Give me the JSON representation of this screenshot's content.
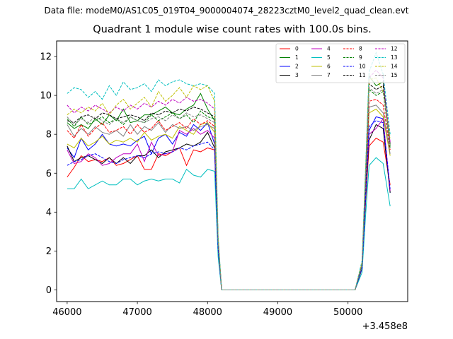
{
  "header": {
    "data_file": "Data file: modeM0/AS1C05_019T04_9000004074_28223cztM0_level2_quad_clean.evt"
  },
  "chart_data": {
    "type": "line",
    "title": "Quadrant 1 module wise count rates with 100.0s bins.",
    "xlabel": "",
    "ylabel": "",
    "x_offset_label": "+3.458e8",
    "xlim": [
      45850,
      50850
    ],
    "ylim": [
      -0.6,
      12.8
    ],
    "x_ticks": [
      46000,
      47000,
      48000,
      49000,
      50000
    ],
    "y_ticks": [
      0,
      2,
      4,
      6,
      8,
      10,
      12
    ],
    "grid": false,
    "legend_placement": "top-right",
    "x": [
      46000,
      46100,
      46200,
      46300,
      46400,
      46500,
      46600,
      46700,
      46800,
      46900,
      47000,
      47100,
      47200,
      47300,
      47400,
      47500,
      47600,
      47700,
      47800,
      47900,
      48000,
      48100,
      48150,
      48200,
      48300,
      48400,
      48500,
      48600,
      48700,
      48800,
      48900,
      49000,
      49100,
      49200,
      49300,
      49400,
      49500,
      49600,
      49700,
      49800,
      49900,
      50000,
      50100,
      50200,
      50250,
      50300,
      50400,
      50500,
      50600
    ],
    "series": [
      {
        "name": "0",
        "color": "#ff0000",
        "dash": "solid",
        "values": [
          5.8,
          6.3,
          6.9,
          6.6,
          6.7,
          6.6,
          6.8,
          6.4,
          6.5,
          6.7,
          6.9,
          6.2,
          6.2,
          7.0,
          6.9,
          7.1,
          7.3,
          6.4,
          7.2,
          7.1,
          7.3,
          7.2,
          2.0,
          0,
          0,
          0,
          0,
          0,
          0,
          0,
          0,
          0,
          0,
          0,
          0,
          0,
          0,
          0,
          0,
          0,
          0,
          0,
          0,
          1.1,
          4.5,
          7.4,
          7.8,
          7.6,
          5.4
        ]
      },
      {
        "name": "1",
        "color": "#008000",
        "dash": "solid",
        "values": [
          8.6,
          8.3,
          8.5,
          8.3,
          8.8,
          8.5,
          9.0,
          8.7,
          9.3,
          8.6,
          8.7,
          9.0,
          9.0,
          9.2,
          9.4,
          9.1,
          9.0,
          9.3,
          9.5,
          10.1,
          9.3,
          8.7,
          2.6,
          0,
          0,
          0,
          0,
          0,
          0,
          0,
          0,
          0,
          0,
          0,
          0,
          0,
          0,
          0,
          0,
          0,
          0,
          0,
          0,
          1.3,
          6.0,
          11.0,
          10.5,
          10.7,
          7.4
        ]
      },
      {
        "name": "2",
        "color": "#0000ff",
        "dash": "solid",
        "values": [
          7.3,
          6.8,
          7.8,
          7.2,
          7.5,
          8.0,
          7.5,
          7.4,
          7.5,
          7.4,
          7.7,
          7.9,
          7.0,
          7.8,
          8.0,
          7.5,
          8.1,
          7.9,
          8.5,
          8.2,
          8.6,
          7.5,
          2.2,
          0,
          0,
          0,
          0,
          0,
          0,
          0,
          0,
          0,
          0,
          0,
          0,
          0,
          0,
          0,
          0,
          0,
          0,
          0,
          0,
          1.2,
          5.0,
          8.2,
          8.9,
          8.8,
          5.0
        ]
      },
      {
        "name": "3",
        "color": "#000000",
        "dash": "solid",
        "values": [
          7.4,
          6.6,
          6.8,
          6.9,
          6.7,
          6.5,
          6.8,
          6.5,
          6.8,
          6.5,
          6.9,
          6.9,
          7.2,
          6.8,
          7.1,
          7.2,
          7.3,
          7.5,
          7.4,
          7.6,
          8.1,
          7.3,
          2.1,
          0,
          0,
          0,
          0,
          0,
          0,
          0,
          0,
          0,
          0,
          0,
          0,
          0,
          0,
          0,
          0,
          0,
          0,
          0,
          0,
          1.1,
          4.6,
          7.7,
          8.5,
          8.3,
          5.0
        ]
      },
      {
        "name": "4",
        "color": "#bf00bf",
        "dash": "solid",
        "values": [
          7.2,
          6.5,
          6.6,
          7.0,
          6.8,
          6.4,
          6.5,
          6.8,
          7.0,
          7.0,
          7.5,
          6.6,
          7.6,
          6.9,
          7.0,
          7.1,
          8.2,
          8.0,
          8.3,
          8.0,
          8.2,
          7.8,
          2.2,
          0,
          0,
          0,
          0,
          0,
          0,
          0,
          0,
          0,
          0,
          0,
          0,
          0,
          0,
          0,
          0,
          0,
          0,
          0,
          0,
          1.2,
          4.8,
          8.0,
          8.3,
          8.8,
          5.1
        ]
      },
      {
        "name": "5",
        "color": "#00bfbf",
        "dash": "solid",
        "values": [
          5.2,
          5.2,
          5.7,
          5.2,
          5.4,
          5.6,
          5.4,
          5.4,
          5.7,
          5.7,
          5.4,
          5.6,
          5.7,
          5.6,
          5.7,
          5.7,
          5.5,
          6.2,
          5.9,
          5.8,
          6.2,
          6.1,
          1.7,
          0,
          0,
          0,
          0,
          0,
          0,
          0,
          0,
          0,
          0,
          0,
          0,
          0,
          0,
          0,
          0,
          0,
          0,
          0,
          0,
          0.9,
          3.8,
          6.4,
          6.8,
          6.5,
          4.3
        ]
      },
      {
        "name": "6",
        "color": "#bfbf00",
        "dash": "solid",
        "values": [
          7.5,
          7.3,
          7.8,
          7.4,
          7.6,
          7.9,
          7.5,
          7.7,
          7.6,
          7.8,
          7.6,
          8.1,
          7.7,
          7.9,
          8.0,
          7.8,
          8.4,
          8.2,
          8.0,
          8.5,
          8.6,
          8.1,
          2.3,
          0,
          0,
          0,
          0,
          0,
          0,
          0,
          0,
          0,
          0,
          0,
          0,
          0,
          0,
          0,
          0,
          0,
          0,
          0,
          0,
          1.2,
          5.1,
          9.1,
          9.3,
          8.9,
          6.9
        ]
      },
      {
        "name": "7",
        "color": "#808080",
        "dash": "solid",
        "values": [
          8.5,
          7.9,
          8.3,
          8.0,
          8.4,
          8.1,
          8.0,
          8.2,
          7.9,
          8.5,
          8.0,
          8.4,
          8.2,
          8.6,
          8.1,
          8.5,
          8.3,
          8.4,
          8.2,
          8.4,
          8.5,
          8.3,
          2.4,
          0,
          0,
          0,
          0,
          0,
          0,
          0,
          0,
          0,
          0,
          0,
          0,
          0,
          0,
          0,
          0,
          0,
          0,
          0,
          0,
          1.2,
          5.2,
          9.4,
          9.5,
          9.1,
          7.0
        ]
      },
      {
        "name": "8",
        "color": "#ff0000",
        "dash": "dashed",
        "values": [
          8.2,
          7.8,
          8.5,
          7.9,
          8.3,
          8.6,
          8.1,
          8.2,
          8.4,
          8.0,
          8.5,
          8.1,
          8.3,
          8.7,
          8.2,
          8.4,
          8.6,
          8.3,
          8.8,
          8.5,
          8.7,
          8.4,
          2.4,
          0,
          0,
          0,
          0,
          0,
          0,
          0,
          0,
          0,
          0,
          0,
          0,
          0,
          0,
          0,
          0,
          0,
          0,
          0,
          0,
          1.3,
          5.4,
          9.7,
          9.8,
          9.5,
          7.2
        ]
      },
      {
        "name": "9",
        "color": "#008000",
        "dash": "dashed",
        "values": [
          8.8,
          8.4,
          8.9,
          8.5,
          8.7,
          8.9,
          8.6,
          8.8,
          8.5,
          8.9,
          8.7,
          8.6,
          9.0,
          8.7,
          8.9,
          9.1,
          8.8,
          9.0,
          8.6,
          9.2,
          8.9,
          8.8,
          2.5,
          0,
          0,
          0,
          0,
          0,
          0,
          0,
          0,
          0,
          0,
          0,
          0,
          0,
          0,
          0,
          0,
          0,
          0,
          0,
          0,
          1.3,
          5.6,
          10.3,
          10.0,
          10.2,
          7.3
        ]
      },
      {
        "name": "10",
        "color": "#0000ff",
        "dash": "dashed",
        "values": [
          6.4,
          6.6,
          6.7,
          6.9,
          7.0,
          6.8,
          6.6,
          6.5,
          6.7,
          6.8,
          6.9,
          6.8,
          7.0,
          7.1,
          7.0,
          7.1,
          7.3,
          7.2,
          7.4,
          7.5,
          7.6,
          7.2,
          2.1,
          0,
          0,
          0,
          0,
          0,
          0,
          0,
          0,
          0,
          0,
          0,
          0,
          0,
          0,
          0,
          0,
          0,
          0,
          0,
          0,
          1.1,
          4.7,
          8.4,
          8.7,
          8.6,
          5.2
        ]
      },
      {
        "name": "11",
        "color": "#000000",
        "dash": "dashed",
        "values": [
          8.7,
          8.6,
          8.9,
          9.0,
          8.8,
          9.1,
          9.0,
          8.8,
          8.9,
          9.0,
          8.9,
          8.7,
          9.1,
          9.0,
          9.2,
          9.1,
          9.3,
          9.2,
          9.4,
          9.3,
          9.1,
          8.9,
          2.5,
          0,
          0,
          0,
          0,
          0,
          0,
          0,
          0,
          0,
          0,
          0,
          0,
          0,
          0,
          0,
          0,
          0,
          0,
          0,
          0,
          1.3,
          5.7,
          10.6,
          10.3,
          10.5,
          7.5
        ]
      },
      {
        "name": "12",
        "color": "#bf00bf",
        "dash": "dashed",
        "values": [
          9.5,
          9.1,
          9.4,
          9.2,
          9.5,
          9.3,
          9.1,
          9.4,
          9.2,
          9.5,
          9.3,
          9.6,
          9.4,
          9.7,
          9.5,
          9.8,
          9.6,
          9.9,
          9.7,
          9.8,
          9.6,
          9.3,
          2.6,
          0,
          0,
          0,
          0,
          0,
          0,
          0,
          0,
          0,
          0,
          0,
          0,
          0,
          0,
          0,
          0,
          0,
          0,
          0,
          0,
          1.4,
          5.9,
          10.9,
          11.3,
          10.9,
          7.6
        ]
      },
      {
        "name": "13",
        "color": "#00bfbf",
        "dash": "dashed",
        "values": [
          10.1,
          10.4,
          10.3,
          9.9,
          10.2,
          9.8,
          10.5,
          10.0,
          10.7,
          10.3,
          10.4,
          10.6,
          10.2,
          10.8,
          10.5,
          10.7,
          10.8,
          10.6,
          10.5,
          10.6,
          10.5,
          10.1,
          2.8,
          0,
          0,
          0,
          0,
          0,
          0,
          0,
          0,
          0,
          0,
          0,
          0,
          0,
          0,
          0,
          0,
          0,
          0,
          0,
          0,
          1.5,
          6.3,
          11.2,
          12.2,
          11.1,
          8.0
        ]
      },
      {
        "name": "14",
        "color": "#bfbf00",
        "dash": "dashed",
        "values": [
          9.0,
          9.3,
          9.1,
          9.4,
          9.2,
          9.6,
          9.0,
          9.5,
          9.8,
          9.3,
          9.6,
          9.9,
          9.4,
          10.2,
          9.7,
          10.0,
          10.4,
          9.9,
          10.5,
          10.3,
          10.5,
          9.7,
          2.7,
          0,
          0,
          0,
          0,
          0,
          0,
          0,
          0,
          0,
          0,
          0,
          0,
          0,
          0,
          0,
          0,
          0,
          0,
          0,
          0,
          1.4,
          6.1,
          10.8,
          10.9,
          10.2,
          7.8
        ]
      },
      {
        "name": "15",
        "color": "#808080",
        "dash": "dashed",
        "values": [
          8.9,
          8.5,
          8.8,
          8.6,
          8.9,
          8.7,
          8.5,
          8.8,
          8.6,
          8.9,
          8.7,
          8.6,
          8.8,
          8.9,
          8.7,
          9.0,
          8.8,
          9.1,
          8.9,
          9.0,
          8.8,
          8.6,
          2.5,
          0,
          0,
          0,
          0,
          0,
          0,
          0,
          0,
          0,
          0,
          0,
          0,
          0,
          0,
          0,
          0,
          0,
          0,
          0,
          0,
          1.3,
          5.8,
          10.4,
          10.1,
          10.3,
          7.4
        ]
      }
    ]
  }
}
